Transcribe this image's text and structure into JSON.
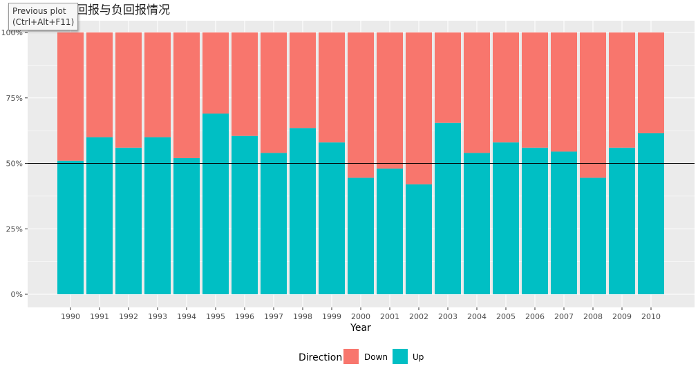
{
  "tooltip": {
    "line1": "Previous plot",
    "line2": "(Ctrl+Alt+F11)"
  },
  "chart_data": {
    "type": "bar",
    "stacked": true,
    "title": "各国的正回报与负回报情况",
    "xlabel": "Year",
    "ylabel": "",
    "ylim": [
      0,
      1
    ],
    "yticks": [
      "0%",
      "25%",
      "50%",
      "75%",
      "100%"
    ],
    "reference_line": 0.5,
    "grid": true,
    "legend_position": "bottom",
    "legend_title": "Direction",
    "categories": [
      "1990",
      "1991",
      "1992",
      "1993",
      "1994",
      "1995",
      "1996",
      "1997",
      "1998",
      "1999",
      "2000",
      "2001",
      "2002",
      "2003",
      "2004",
      "2005",
      "2006",
      "2007",
      "2008",
      "2009",
      "2010"
    ],
    "series": [
      {
        "name": "Down",
        "color": "#F8766D",
        "values": [
          0.49,
          0.4,
          0.44,
          0.4,
          0.48,
          0.31,
          0.395,
          0.46,
          0.365,
          0.42,
          0.555,
          0.52,
          0.58,
          0.345,
          0.46,
          0.42,
          0.44,
          0.455,
          0.555,
          0.44,
          0.385
        ]
      },
      {
        "name": "Up",
        "color": "#00BFC4",
        "values": [
          0.51,
          0.6,
          0.56,
          0.6,
          0.52,
          0.69,
          0.605,
          0.54,
          0.635,
          0.58,
          0.445,
          0.48,
          0.42,
          0.655,
          0.54,
          0.58,
          0.56,
          0.545,
          0.445,
          0.56,
          0.615
        ]
      }
    ]
  }
}
